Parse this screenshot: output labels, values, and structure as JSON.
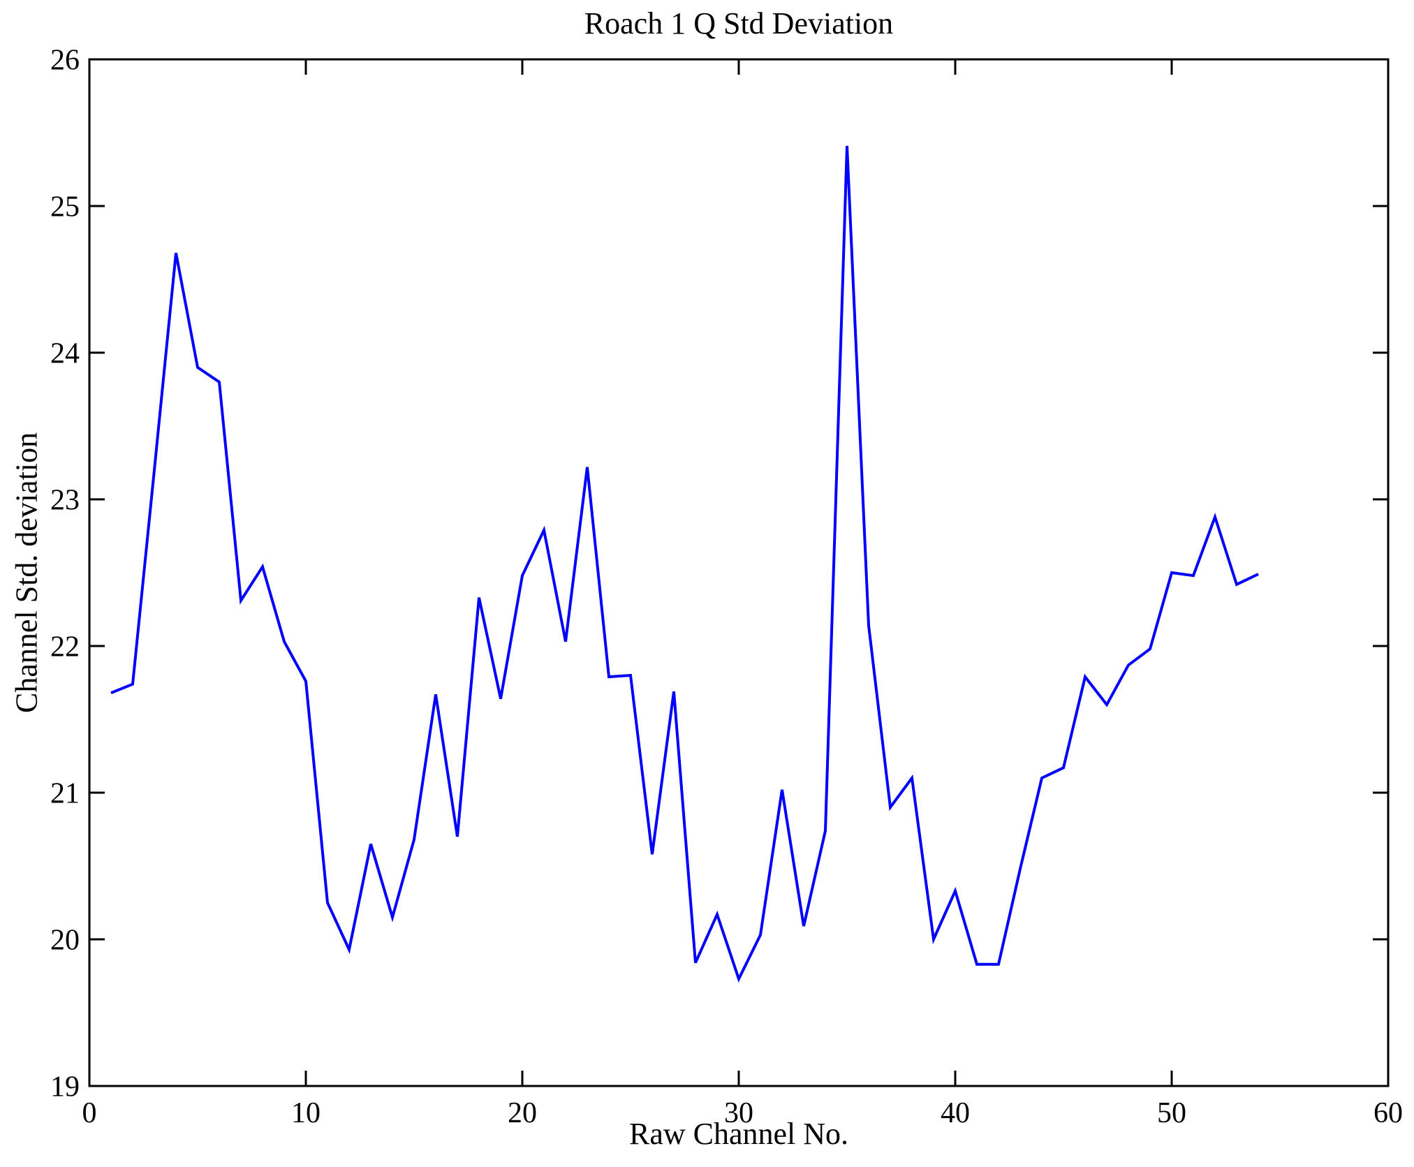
{
  "title": "Roach 1 Q Std Deviation",
  "chart_data": {
    "type": "line",
    "title": "Roach 1 Q Std Deviation",
    "xlabel": "Raw Channel No.",
    "ylabel": "Channel Std. deviation",
    "xlim": [
      0,
      60
    ],
    "ylim": [
      19,
      26
    ],
    "xticks": [
      0,
      10,
      20,
      30,
      40,
      50,
      60
    ],
    "yticks": [
      19,
      20,
      21,
      22,
      23,
      24,
      25,
      26
    ],
    "grid": false,
    "legend": null,
    "line_color": "#0000FF",
    "axis_color": "#000000",
    "background_color": "#FFFFFF",
    "series_name": "Channel Std. deviation vs Raw Channel No.",
    "x": [
      1,
      2,
      3,
      4,
      5,
      6,
      7,
      8,
      9,
      10,
      11,
      12,
      13,
      14,
      15,
      16,
      17,
      18,
      19,
      20,
      21,
      22,
      23,
      24,
      25,
      26,
      27,
      28,
      29,
      30,
      31,
      32,
      33,
      34,
      35,
      36,
      37,
      38,
      39,
      40,
      41,
      42,
      43,
      44,
      45,
      46,
      47,
      48,
      49,
      50,
      51,
      52,
      53,
      54
    ],
    "y": [
      21.68,
      21.74,
      23.2,
      24.68,
      23.9,
      23.8,
      22.31,
      22.54,
      22.03,
      21.76,
      20.25,
      19.93,
      20.65,
      20.15,
      20.68,
      21.67,
      20.7,
      22.33,
      21.64,
      22.48,
      22.79,
      22.03,
      23.22,
      21.79,
      21.8,
      20.58,
      21.69,
      19.84,
      20.17,
      19.73,
      20.03,
      21.02,
      20.09,
      20.74,
      25.41,
      22.14,
      20.9,
      21.1,
      20.0,
      20.33,
      19.83,
      19.83,
      20.48,
      21.1,
      21.17,
      21.79,
      21.6,
      21.87,
      21.98,
      22.5,
      22.48,
      22.88,
      22.42,
      22.49
    ]
  }
}
